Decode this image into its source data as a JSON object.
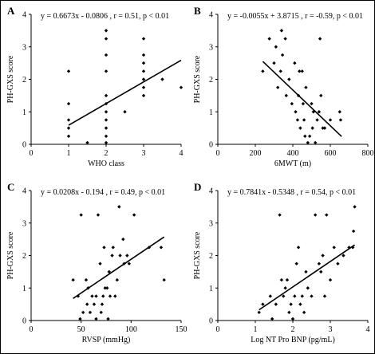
{
  "chart_data": [
    {
      "type": "scatter",
      "panel": "A",
      "annotation": "y = 0.6673x - 0.0806 , r = 0.51, p < 0.01",
      "xlabel": "WHO class",
      "ylabel": "PH-GXS score",
      "xlim": [
        0,
        4
      ],
      "ylim": [
        0,
        4
      ],
      "xticks": [
        0,
        1,
        2,
        3,
        4
      ],
      "yticks": [
        0,
        1,
        2,
        3,
        4
      ],
      "fit": {
        "slope": 0.6673,
        "intercept": -0.0806,
        "x_range": [
          1,
          4
        ]
      },
      "points": [
        [
          1,
          2.25
        ],
        [
          1,
          1.25
        ],
        [
          1,
          0.75
        ],
        [
          1,
          0.5
        ],
        [
          1,
          0.25
        ],
        [
          1.5,
          0.05
        ],
        [
          2,
          3.5
        ],
        [
          2,
          3.25
        ],
        [
          2,
          2.75
        ],
        [
          2,
          2.25
        ],
        [
          2,
          1.5
        ],
        [
          2,
          1.25
        ],
        [
          2,
          1.0
        ],
        [
          2,
          0.75
        ],
        [
          2,
          0.5
        ],
        [
          2,
          0.25
        ],
        [
          2,
          0.05
        ],
        [
          2.5,
          1.0
        ],
        [
          3,
          3.25
        ],
        [
          3,
          2.75
        ],
        [
          3,
          2.5
        ],
        [
          3,
          2.25
        ],
        [
          3,
          2.0
        ],
        [
          3,
          1.75
        ],
        [
          3,
          1.5
        ],
        [
          3.5,
          2.0
        ],
        [
          4,
          1.75
        ]
      ]
    },
    {
      "type": "scatter",
      "panel": "B",
      "annotation": "y = -0.0055x + 3.8715 , r = -0.59, p < 0.01",
      "xlabel": "6MWT (m)",
      "ylabel": "PH-GXS score",
      "xlim": [
        0,
        800
      ],
      "ylim": [
        0,
        4
      ],
      "xticks": [
        0,
        200,
        400,
        600,
        800
      ],
      "yticks": [
        0,
        1,
        2,
        3,
        4
      ],
      "fit": {
        "slope": -0.0055,
        "intercept": 3.8715,
        "x_range": [
          240,
          660
        ]
      },
      "points": [
        [
          240,
          2.25
        ],
        [
          275,
          3.25
        ],
        [
          300,
          2.5
        ],
        [
          310,
          3.0
        ],
        [
          320,
          1.75
        ],
        [
          335,
          2.25
        ],
        [
          340,
          3.5
        ],
        [
          345,
          2.75
        ],
        [
          360,
          3.25
        ],
        [
          365,
          1.5
        ],
        [
          380,
          2.0
        ],
        [
          395,
          1.25
        ],
        [
          410,
          2.5
        ],
        [
          415,
          1.0
        ],
        [
          425,
          0.75
        ],
        [
          430,
          1.5
        ],
        [
          435,
          2.25
        ],
        [
          440,
          0.5
        ],
        [
          450,
          2.25
        ],
        [
          455,
          1.25
        ],
        [
          460,
          0.75
        ],
        [
          465,
          0.25
        ],
        [
          470,
          1.75
        ],
        [
          480,
          0.05
        ],
        [
          490,
          0.25
        ],
        [
          500,
          1.25
        ],
        [
          505,
          0.5
        ],
        [
          510,
          1.0
        ],
        [
          520,
          0.05
        ],
        [
          530,
          0.75
        ],
        [
          540,
          1.0
        ],
        [
          545,
          3.25
        ],
        [
          550,
          1.5
        ],
        [
          560,
          0.5
        ],
        [
          570,
          0.5
        ],
        [
          600,
          0.75
        ],
        [
          650,
          1.0
        ],
        [
          655,
          0.75
        ]
      ]
    },
    {
      "type": "scatter",
      "panel": "C",
      "annotation": "y = 0.0208x - 0.194 , r = 0.49, p < 0.01",
      "xlabel": "RVSP (mmHg)",
      "ylabel": "PH-GXS score",
      "xlim": [
        0,
        150
      ],
      "ylim": [
        0,
        4
      ],
      "xticks": [
        0,
        50,
        100,
        150
      ],
      "yticks": [
        0,
        1,
        2,
        3,
        4
      ],
      "fit": {
        "slope": 0.0208,
        "intercept": -0.194,
        "x_range": [
          42,
          133
        ]
      },
      "points": [
        [
          42,
          1.25
        ],
        [
          47,
          0.75
        ],
        [
          49,
          0.05
        ],
        [
          50,
          3.25
        ],
        [
          52,
          0.25
        ],
        [
          55,
          1.25
        ],
        [
          56,
          0.5
        ],
        [
          57,
          1.0
        ],
        [
          59,
          0.25
        ],
        [
          61,
          0.75
        ],
        [
          63,
          0.5
        ],
        [
          65,
          0.05
        ],
        [
          65,
          0.75
        ],
        [
          67,
          3.25
        ],
        [
          69,
          1.75
        ],
        [
          70,
          0.25
        ],
        [
          71,
          0.5
        ],
        [
          72,
          0.75
        ],
        [
          73,
          2.25
        ],
        [
          74,
          1.0
        ],
        [
          76,
          1.0
        ],
        [
          77,
          0.05
        ],
        [
          78,
          1.5
        ],
        [
          79,
          0.75
        ],
        [
          81,
          2.0
        ],
        [
          82,
          2.25
        ],
        [
          84,
          0.75
        ],
        [
          86,
          1.25
        ],
        [
          88,
          3.5
        ],
        [
          89,
          2.0
        ],
        [
          92,
          2.5
        ],
        [
          93,
          1.75
        ],
        [
          96,
          2.0
        ],
        [
          98,
          1.75
        ],
        [
          103,
          3.25
        ],
        [
          118,
          2.25
        ],
        [
          130,
          2.25
        ],
        [
          133,
          1.25
        ]
      ]
    },
    {
      "type": "scatter",
      "panel": "D",
      "annotation": "y = 0.7841x - 0.5348 , r = 0.54, p < 0.01",
      "xlabel": "Log NT Pro BNP (pg/mL)",
      "ylabel": "PH-GXS score",
      "xlim": [
        0,
        4
      ],
      "ylim": [
        0,
        4
      ],
      "xticks": [
        0,
        1,
        2,
        3,
        4
      ],
      "yticks": [
        0,
        1,
        2,
        3,
        4
      ],
      "fit": {
        "slope": 0.7841,
        "intercept": -0.5348,
        "x_range": [
          1.1,
          3.65
        ]
      },
      "points": [
        [
          1.1,
          0.25
        ],
        [
          1.2,
          0.5
        ],
        [
          1.4,
          0.75
        ],
        [
          1.45,
          0.05
        ],
        [
          1.55,
          0.5
        ],
        [
          1.65,
          3.25
        ],
        [
          1.7,
          1.25
        ],
        [
          1.75,
          0.75
        ],
        [
          1.8,
          1.0
        ],
        [
          1.85,
          1.25
        ],
        [
          1.9,
          0.25
        ],
        [
          1.95,
          0.5
        ],
        [
          2.0,
          0.05
        ],
        [
          2.05,
          0.75
        ],
        [
          2.1,
          1.75
        ],
        [
          2.15,
          2.25
        ],
        [
          2.2,
          0.5
        ],
        [
          2.25,
          0.75
        ],
        [
          2.3,
          0.25
        ],
        [
          2.35,
          1.5
        ],
        [
          2.4,
          1.0
        ],
        [
          2.5,
          0.75
        ],
        [
          2.6,
          3.25
        ],
        [
          2.7,
          1.75
        ],
        [
          2.75,
          1.5
        ],
        [
          2.8,
          2.0
        ],
        [
          2.85,
          0.75
        ],
        [
          2.9,
          3.25
        ],
        [
          3.0,
          1.25
        ],
        [
          3.1,
          2.25
        ],
        [
          3.2,
          1.75
        ],
        [
          3.35,
          2.0
        ],
        [
          3.5,
          2.25
        ],
        [
          3.6,
          2.25
        ],
        [
          3.62,
          2.75
        ],
        [
          3.65,
          3.5
        ]
      ]
    }
  ]
}
